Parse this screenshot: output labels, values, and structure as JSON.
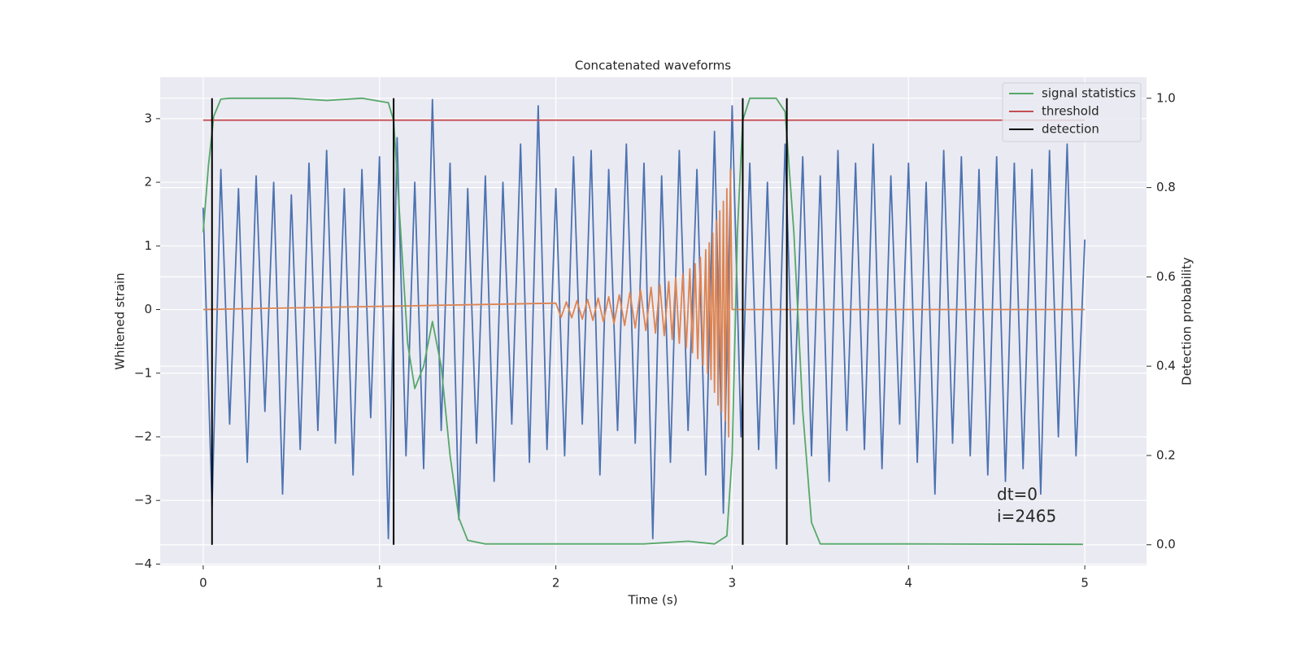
{
  "chart_data": {
    "type": "line",
    "title": "Concatenated waveforms",
    "xlabel": "Time (s)",
    "ylabel": "Whitened strain",
    "y2label": "Detection probability",
    "xlim": [
      -0.244,
      5.35
    ],
    "ylim": [
      -4.02,
      3.65
    ],
    "y2lim": [
      -0.046,
      1.047
    ],
    "xticks": [
      0,
      1,
      2,
      3,
      4,
      5
    ],
    "yticks": [
      {
        "value": -4,
        "label": "−4"
      },
      {
        "value": -3,
        "label": "−3"
      },
      {
        "value": -2,
        "label": "−2"
      },
      {
        "value": -1,
        "label": "−1"
      },
      0,
      1,
      2,
      3
    ],
    "y2ticks": [
      {
        "value": 0,
        "label": "0.0"
      },
      0.2,
      0.4,
      0.6,
      0.8,
      {
        "value": 1,
        "label": "1.0"
      }
    ],
    "grid": true,
    "legend": "upper right",
    "annotations": [
      "dt=0",
      "i=2465"
    ],
    "series": [
      {
        "color": "#4c72b0",
        "style": "line",
        "axis": "y",
        "x": [
          0,
          0.05,
          0.1,
          0.15,
          0.2,
          0.25,
          0.3,
          0.35,
          0.4,
          0.45,
          0.5,
          0.55,
          0.6,
          0.65,
          0.7,
          0.75,
          0.8,
          0.85,
          0.9,
          0.95,
          1,
          1.05,
          1.1,
          1.15,
          1.2,
          1.25,
          1.3,
          1.35,
          1.4,
          1.45,
          1.5,
          1.55,
          1.6,
          1.65,
          1.7,
          1.75,
          1.8,
          1.85,
          1.9,
          1.95,
          2,
          2.05,
          2.1,
          2.15,
          2.2,
          2.25,
          2.3,
          2.35,
          2.4,
          2.45,
          2.5,
          2.55,
          2.6,
          2.65,
          2.7,
          2.75,
          2.8,
          2.85,
          2.9,
          2.95,
          3,
          3.05,
          3.1,
          3.15,
          3.2,
          3.25,
          3.3,
          3.35,
          3.4,
          3.45,
          3.5,
          3.55,
          3.6,
          3.65,
          3.7,
          3.75,
          3.8,
          3.85,
          3.9,
          3.95,
          4,
          4.05,
          4.1,
          4.15,
          4.2,
          4.25,
          4.3,
          4.35,
          4.4,
          4.45,
          4.5,
          4.55,
          4.6,
          4.65,
          4.7,
          4.75,
          4.8,
          4.85,
          4.9,
          4.95,
          5
        ],
        "values": [
          1.6,
          -3.1,
          2.2,
          -1.8,
          1.9,
          -2.4,
          2.1,
          -1.6,
          2.0,
          -2.9,
          1.8,
          -2.2,
          2.3,
          -1.9,
          2.5,
          -2.1,
          1.9,
          -2.6,
          2.2,
          -1.7,
          2.4,
          -3.6,
          2.7,
          -2.3,
          2.0,
          -2.5,
          3.3,
          -1.9,
          2.3,
          -3.3,
          1.9,
          -2.1,
          2.1,
          -2.7,
          2.0,
          -1.8,
          2.6,
          -2.4,
          3.2,
          -2.2,
          1.9,
          -2.3,
          2.4,
          -1.8,
          2.5,
          -2.6,
          2.2,
          -1.9,
          2.6,
          -2.1,
          2.3,
          -3.6,
          2.1,
          -2.4,
          2.5,
          -1.9,
          2.2,
          -2.6,
          2.8,
          -3.2,
          3.2,
          -2.0,
          2.3,
          -2.2,
          2.0,
          -2.5,
          2.6,
          -1.8,
          2.4,
          -2.3,
          2.1,
          -2.7,
          2.5,
          -1.9,
          2.3,
          -2.2,
          2.6,
          -2.5,
          2.1,
          -1.8,
          2.3,
          -2.4,
          2.0,
          -2.9,
          2.5,
          -2.1,
          2.4,
          -2.3,
          2.2,
          -2.6,
          2.4,
          -2.7,
          2.3,
          -2.5,
          2.2,
          -2.9,
          2.5,
          -2.0,
          2.6,
          -2.3,
          1.1
        ]
      },
      {
        "color": "#dd8452",
        "style": "line",
        "axis": "y",
        "x": [
          0,
          2,
          2.03,
          2.06,
          2.09,
          2.12,
          2.15,
          2.18,
          2.21,
          2.24,
          2.27,
          2.3,
          2.33,
          2.36,
          2.39,
          2.42,
          2.45,
          2.48,
          2.51,
          2.54,
          2.565,
          2.59,
          2.615,
          2.64,
          2.66,
          2.68,
          2.7,
          2.72,
          2.74,
          2.76,
          2.775,
          2.79,
          2.805,
          2.82,
          2.835,
          2.85,
          2.86,
          2.87,
          2.88,
          2.89,
          2.9,
          2.91,
          2.92,
          2.93,
          2.94,
          2.95,
          2.96,
          2.97,
          2.98,
          2.99,
          3,
          5
        ],
        "values": [
          0,
          0.1,
          -0.12,
          0.12,
          -0.13,
          0.14,
          -0.15,
          0.16,
          -0.17,
          0.18,
          -0.19,
          0.2,
          -0.22,
          0.23,
          -0.25,
          0.27,
          -0.29,
          0.31,
          -0.33,
          0.35,
          -0.37,
          0.39,
          -0.41,
          0.44,
          -0.47,
          0.5,
          -0.53,
          0.56,
          -0.6,
          0.64,
          -0.68,
          0.72,
          -0.77,
          0.82,
          -0.88,
          0.94,
          -1.0,
          1.05,
          -1.1,
          1.2,
          -1.3,
          1.4,
          -1.5,
          1.55,
          -1.6,
          1.7,
          -1.75,
          1.9,
          -2.0,
          2.2,
          0,
          0
        ]
      },
      {
        "name": "signal statistics",
        "color": "#55a868",
        "style": "line",
        "axis": "y2",
        "x": [
          0,
          0.03,
          0.06,
          0.1,
          0.15,
          0.5,
          0.7,
          0.9,
          1.05,
          1.08,
          1.12,
          1.16,
          1.2,
          1.25,
          1.3,
          1.35,
          1.4,
          1.45,
          1.5,
          1.6,
          2.0,
          2.5,
          2.75,
          2.9,
          2.97,
          3.0,
          3.03,
          3.06,
          3.1,
          3.25,
          3.3,
          3.35,
          3.4,
          3.45,
          3.5,
          4.0,
          4.99
        ],
        "values": [
          0.7,
          0.85,
          0.96,
          0.998,
          1.0,
          1.0,
          0.995,
          1.0,
          0.99,
          0.95,
          0.7,
          0.45,
          0.35,
          0.4,
          0.5,
          0.4,
          0.2,
          0.06,
          0.01,
          0.002,
          0.002,
          0.002,
          0.008,
          0.002,
          0.02,
          0.2,
          0.7,
          0.95,
          1.0,
          1.0,
          0.97,
          0.7,
          0.3,
          0.05,
          0.002,
          0.002,
          0.001
        ]
      },
      {
        "name": "threshold",
        "color": "#c44e52",
        "style": "line",
        "axis": "y2",
        "x": [
          0,
          5
        ],
        "values": [
          0.951,
          0.951
        ]
      },
      {
        "name": "detection",
        "color": "#000000",
        "style": "vlines",
        "axis": "y2",
        "x": [
          0.05,
          1.08,
          3.06,
          3.31
        ],
        "values": [
          1,
          1,
          1,
          1
        ]
      }
    ]
  }
}
